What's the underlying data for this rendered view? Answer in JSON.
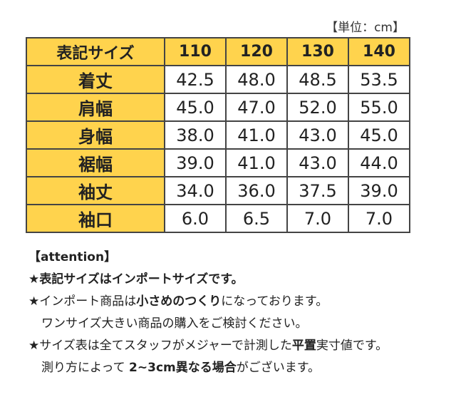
{
  "unit_note": "【単位：cm】",
  "table": {
    "corner": "表記サイズ",
    "sizes": [
      "110",
      "120",
      "130",
      "140"
    ],
    "rows": [
      {
        "label": "着丈",
        "values": [
          "42.5",
          "48.0",
          "48.5",
          "53.5"
        ]
      },
      {
        "label": "肩幅",
        "values": [
          "45.0",
          "47.0",
          "52.0",
          "55.0"
        ]
      },
      {
        "label": "身幅",
        "values": [
          "38.0",
          "41.0",
          "43.0",
          "45.0"
        ]
      },
      {
        "label": "裾幅",
        "values": [
          "39.0",
          "41.0",
          "43.0",
          "44.0"
        ]
      },
      {
        "label": "袖丈",
        "values": [
          "34.0",
          "36.0",
          "37.5",
          "39.0"
        ]
      },
      {
        "label": "袖口",
        "values": [
          "6.0",
          "6.5",
          "7.0",
          "7.0"
        ]
      }
    ]
  },
  "notes": {
    "heading": "【attention】",
    "line1": "★表記サイズはインポートサイズです。",
    "line2_a": "★インポート商品は",
    "line2_b": "小さめのつくり",
    "line2_c": "になっております。",
    "line3": "ワンサイズ大きい商品の購入をご検討ください。",
    "line4_a": "★サイズ表は全てスタッフがメジャーで計測した",
    "line4_b": "平置",
    "line4_c": "実寸値です。",
    "line5_a": "測り方によって ",
    "line5_b": "2~3cm異なる場合",
    "line5_c": "がございます。"
  }
}
